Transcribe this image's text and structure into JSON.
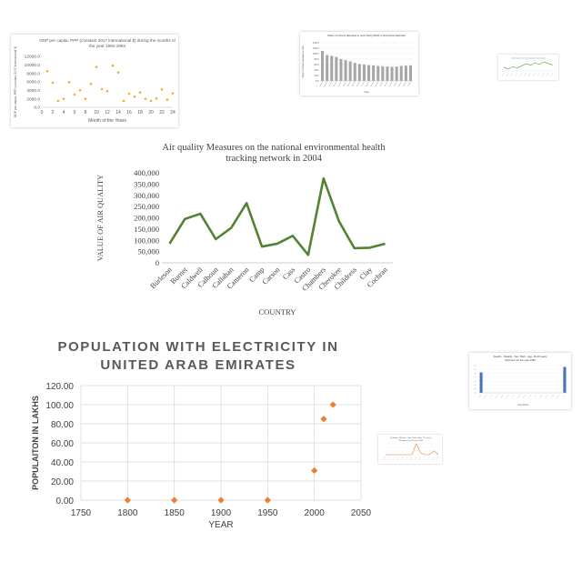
{
  "chart_data": [
    {
      "id": "gdp",
      "type": "scatter",
      "title": "GDP per capita, PPP (constant 2017 international $) during the months of the year 1992-1993",
      "xlabel": "Month of the Years",
      "ylabel": "GDP per capita, PPP (constant 2017 international $)",
      "xticks": [
        "0",
        "2",
        "4",
        "6",
        "8",
        "10",
        "12",
        "14",
        "16",
        "18",
        "20",
        "22",
        "24"
      ],
      "yticks": [
        "0.0",
        "2000.0",
        "4000.0",
        "6000.0",
        "8000.0",
        "10000.0",
        "12000.0"
      ],
      "xlim": [
        0,
        24
      ],
      "ylim": [
        0,
        12000
      ],
      "color": "#f5a623",
      "points": [
        [
          1,
          8500
        ],
        [
          2,
          5800
        ],
        [
          3,
          1500
        ],
        [
          4,
          2000
        ],
        [
          5,
          5900
        ],
        [
          6,
          3000
        ],
        [
          7,
          4000
        ],
        [
          8,
          2000
        ],
        [
          9,
          5500
        ],
        [
          10,
          9500
        ],
        [
          11,
          4300
        ],
        [
          12,
          3800
        ],
        [
          13,
          9800
        ],
        [
          14,
          8200
        ],
        [
          15,
          1500
        ],
        [
          16,
          3200
        ],
        [
          17,
          2500
        ],
        [
          18,
          3500
        ],
        [
          19,
          2000
        ],
        [
          20,
          1500
        ],
        [
          21,
          2100
        ],
        [
          22,
          4200
        ],
        [
          23,
          1800
        ],
        [
          24,
          3300
        ]
      ]
    },
    {
      "id": "food",
      "type": "bar",
      "title": "Share of current allocated to food (GHQ 2020) in Dominican Republic",
      "xlabel": "Year",
      "ylabel": "Share of current allocated to food",
      "yticks": [
        "0.0",
        "20.0",
        "40.0",
        "60.0",
        "80.0",
        "100.0",
        "120.0",
        "140.0"
      ],
      "ylim": [
        0,
        140
      ],
      "color": "#a6a6a6",
      "values": [
        110,
        95,
        92,
        88,
        80,
        76,
        72,
        66,
        62,
        60,
        58,
        57,
        55,
        54,
        53,
        52,
        53,
        55,
        56,
        57
      ]
    },
    {
      "id": "tiny",
      "type": "line",
      "color": "#70ad47",
      "values": [
        60,
        55,
        62,
        58,
        64,
        70,
        66,
        72,
        68,
        75,
        70,
        66
      ]
    },
    {
      "id": "air",
      "type": "line",
      "title": "Air quality Measures on the national environmental health tracking network in 2004",
      "xlabel": "COUNTRY",
      "ylabel": "VALUE OF AIR QUALITY",
      "yticks": [
        "0",
        "50,000",
        "100,000",
        "150,000",
        "200,000",
        "250,000",
        "300,000",
        "350,000",
        "400,000"
      ],
      "ylim": [
        0,
        400000
      ],
      "color": "#548235",
      "categories": [
        "Burleson",
        "Burnet",
        "Caldwell",
        "Calhoun",
        "Callahan",
        "Cameron",
        "Camp",
        "Carson",
        "Cass",
        "Castro",
        "Chambers",
        "Cherokee",
        "Childress",
        "Clay",
        "Cochran"
      ],
      "values": [
        85000,
        195000,
        218000,
        105000,
        155000,
        265000,
        72000,
        85000,
        120000,
        35000,
        375000,
        185000,
        65000,
        67000,
        85000
      ]
    },
    {
      "id": "elec",
      "type": "scatter",
      "title_lines": [
        "POPULATION WITH ELECTRICITY IN",
        "UNITED ARAB EMIRATES"
      ],
      "xlabel": "YEAR",
      "ylabel": "POPULAITON IN LAKHS",
      "xticks": [
        "1750",
        "1800",
        "1850",
        "1900",
        "1950",
        "2000",
        "2050"
      ],
      "yticks": [
        "0.00",
        "20.00",
        "40.00",
        "60.00",
        "80.00",
        "100.00",
        "120.00"
      ],
      "xlim": [
        1750,
        2050
      ],
      "ylim": [
        0,
        120
      ],
      "color": "#ed7d31",
      "points": [
        [
          1800,
          0
        ],
        [
          1850,
          0
        ],
        [
          1900,
          0
        ],
        [
          1950,
          0
        ],
        [
          2000,
          31
        ],
        [
          2010,
          85
        ],
        [
          2020,
          100
        ]
      ]
    },
    {
      "id": "deaths",
      "type": "bar",
      "title": "Deaths - Malaria - Sex: Both - Age: 15-49 years (Number) for the year 1995",
      "xlabel": "Countries",
      "color": "#4472c4",
      "values": [
        30,
        0,
        0,
        0,
        0,
        0,
        0,
        0,
        0,
        0,
        0,
        0,
        0,
        0,
        0,
        38
      ]
    },
    {
      "id": "small",
      "type": "line",
      "title": "Number - Malaria - Sex: Both - Age: 70+ years (Number) for the year 1995",
      "color": "#ed7d31",
      "values": [
        0,
        0,
        0,
        0,
        0,
        0,
        0,
        14,
        2,
        0,
        0,
        5,
        0
      ]
    }
  ]
}
